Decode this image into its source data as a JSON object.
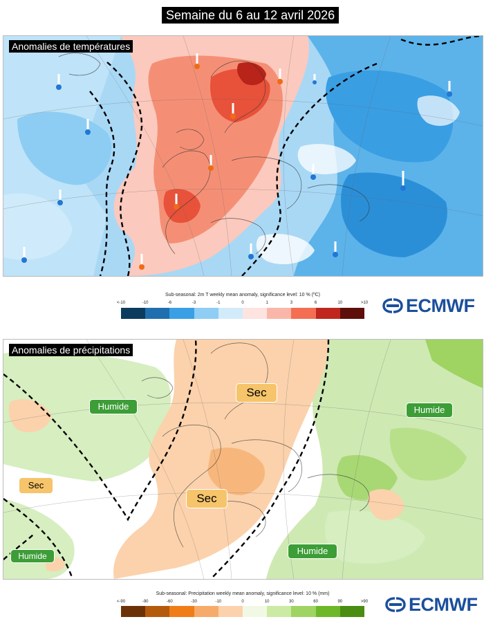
{
  "title": "Semaine du 6 au 12 avril 2026",
  "temperature_map": {
    "label": "Anomalies de températures",
    "legend_caption": "Sub-seasonal: 2m T weekly mean anomaly, significance level: 10 % (ºC)",
    "legend_ticks": [
      "<-10",
      "-10",
      "-6",
      "-3",
      "-1",
      "0",
      "1",
      "3",
      "6",
      "10",
      ">10"
    ],
    "legend_colors": [
      "#0b3c5d",
      "#1f6fae",
      "#3aa0e6",
      "#8fcdf5",
      "#d2ebfb",
      "#fde4e0",
      "#fab7a9",
      "#f36e52",
      "#c0261d",
      "#5e0f0a"
    ]
  },
  "precipitation_map": {
    "label": "Anomalies de précipitations",
    "legend_caption": "Sub-seasonal: Precipitation weekly mean anomaly, significance level: 10 % (mm)",
    "legend_ticks": [
      "<-90",
      "-90",
      "-60",
      "-30",
      "-10",
      "0",
      "10",
      "30",
      "60",
      "90",
      ">90"
    ],
    "legend_colors": [
      "#6b3208",
      "#b45a0c",
      "#f07d18",
      "#f7ab6a",
      "#fbd2ac",
      "#f1f9e4",
      "#cbeaa4",
      "#9fd362",
      "#6cb828",
      "#4a8d12"
    ],
    "badges": {
      "humide_atlantic": "Humide",
      "humide_east": "Humide",
      "humide_south": "Humide",
      "humide_southwest": "Humide",
      "sec_north": "Sec",
      "sec_atlantic": "Sec",
      "sec_west": "Sec"
    }
  },
  "brand": "ECMWF"
}
